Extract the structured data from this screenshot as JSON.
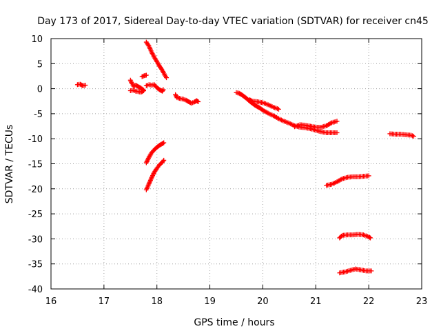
{
  "chart_data": {
    "type": "scatter",
    "title": "Day 173 of 2017, Sidereal Day-to-day VTEC variation (SDTVAR) for receiver cn45",
    "xlabel": "GPS time / hours",
    "ylabel": "SDTVAR / TECUs",
    "xlim": [
      16,
      23
    ],
    "ylim": [
      -40,
      10
    ],
    "xticks": [
      "16",
      "17",
      "18",
      "19",
      "20",
      "21",
      "22",
      "23"
    ],
    "yticks": [
      "10",
      "5",
      "0",
      "-5",
      "-10",
      "-15",
      "-20",
      "-25",
      "-30",
      "-35",
      "-40"
    ],
    "grid": true,
    "marker": "plus",
    "color": "#ff0000",
    "segments": [
      [
        [
          16.5,
          0.8
        ],
        [
          16.55,
          0.9
        ],
        [
          16.6,
          0.6
        ],
        [
          16.65,
          0.7
        ]
      ],
      [
        [
          17.5,
          1.7
        ],
        [
          17.53,
          1.0
        ],
        [
          17.56,
          0.5
        ],
        [
          17.6,
          0.7
        ],
        [
          17.65,
          0.4
        ],
        [
          17.7,
          0.1
        ],
        [
          17.75,
          -0.3
        ]
      ],
      [
        [
          17.5,
          -0.4
        ],
        [
          17.55,
          -0.3
        ],
        [
          17.6,
          -0.5
        ],
        [
          17.65,
          -0.6
        ],
        [
          17.7,
          -0.7
        ],
        [
          17.75,
          -0.4
        ]
      ],
      [
        [
          17.72,
          2.4
        ],
        [
          17.76,
          2.6
        ],
        [
          17.8,
          2.7
        ]
      ],
      [
        [
          17.8,
          0.6
        ],
        [
          17.85,
          0.8
        ],
        [
          17.9,
          0.7
        ],
        [
          17.95,
          0.8
        ],
        [
          18.0,
          0.2
        ],
        [
          18.05,
          -0.2
        ],
        [
          18.1,
          -0.5
        ],
        [
          18.12,
          -0.2
        ]
      ],
      [
        [
          17.8,
          9.3
        ],
        [
          17.85,
          8.5
        ],
        [
          17.9,
          7.3
        ],
        [
          17.95,
          6.3
        ],
        [
          18.0,
          5.4
        ],
        [
          18.05,
          4.5
        ],
        [
          18.1,
          3.7
        ],
        [
          18.15,
          2.7
        ],
        [
          18.18,
          2.2
        ]
      ],
      [
        [
          18.35,
          -1.2
        ],
        [
          18.38,
          -1.8
        ],
        [
          18.45,
          -2.0
        ],
        [
          18.5,
          -2.1
        ],
        [
          18.55,
          -2.3
        ],
        [
          18.6,
          -2.6
        ],
        [
          18.65,
          -2.9
        ],
        [
          18.7,
          -2.7
        ],
        [
          18.75,
          -2.4
        ],
        [
          18.78,
          -2.6
        ]
      ],
      [
        [
          17.8,
          -14.8
        ],
        [
          17.85,
          -13.7
        ],
        [
          17.9,
          -12.8
        ],
        [
          17.95,
          -12.2
        ],
        [
          18.0,
          -11.7
        ],
        [
          18.05,
          -11.3
        ],
        [
          18.1,
          -11.0
        ],
        [
          18.13,
          -10.8
        ]
      ],
      [
        [
          17.8,
          -20.2
        ],
        [
          17.85,
          -19.0
        ],
        [
          17.9,
          -17.8
        ],
        [
          17.95,
          -16.7
        ],
        [
          18.0,
          -15.9
        ],
        [
          18.05,
          -15.2
        ],
        [
          18.1,
          -14.7
        ],
        [
          18.13,
          -14.3
        ]
      ],
      [
        [
          19.5,
          -0.8
        ],
        [
          19.55,
          -0.9
        ],
        [
          19.6,
          -1.2
        ],
        [
          19.65,
          -1.6
        ],
        [
          19.7,
          -2.0
        ],
        [
          19.75,
          -2.5
        ],
        [
          19.8,
          -2.9
        ],
        [
          19.85,
          -3.3
        ],
        [
          19.9,
          -3.6
        ],
        [
          19.95,
          -3.9
        ],
        [
          20.0,
          -4.3
        ],
        [
          20.1,
          -4.9
        ],
        [
          20.2,
          -5.4
        ],
        [
          20.3,
          -6.0
        ],
        [
          20.4,
          -6.5
        ],
        [
          20.5,
          -6.9
        ],
        [
          20.6,
          -7.4
        ],
        [
          20.7,
          -7.7
        ],
        [
          20.8,
          -7.8
        ],
        [
          20.9,
          -8.0
        ],
        [
          21.0,
          -8.3
        ],
        [
          21.1,
          -8.6
        ],
        [
          21.2,
          -8.8
        ],
        [
          21.3,
          -8.8
        ],
        [
          21.4,
          -8.8
        ]
      ],
      [
        [
          19.75,
          -2.2
        ],
        [
          19.8,
          -2.5
        ],
        [
          19.9,
          -2.6
        ],
        [
          20.0,
          -2.8
        ],
        [
          20.1,
          -3.2
        ],
        [
          20.2,
          -3.7
        ],
        [
          20.3,
          -4.1
        ]
      ],
      [
        [
          20.6,
          -7.6
        ],
        [
          20.7,
          -7.2
        ],
        [
          20.8,
          -7.3
        ],
        [
          20.9,
          -7.5
        ],
        [
          21.0,
          -7.7
        ],
        [
          21.1,
          -7.7
        ],
        [
          21.2,
          -7.4
        ],
        [
          21.3,
          -6.8
        ],
        [
          21.4,
          -6.5
        ]
      ],
      [
        [
          21.2,
          -19.3
        ],
        [
          21.3,
          -19.1
        ],
        [
          21.4,
          -18.6
        ],
        [
          21.5,
          -18.0
        ],
        [
          21.6,
          -17.7
        ],
        [
          21.7,
          -17.6
        ],
        [
          21.8,
          -17.6
        ],
        [
          21.9,
          -17.5
        ],
        [
          22.0,
          -17.4
        ]
      ],
      [
        [
          21.45,
          -29.8
        ],
        [
          21.5,
          -29.3
        ],
        [
          21.6,
          -29.2
        ],
        [
          21.7,
          -29.2
        ],
        [
          21.8,
          -29.1
        ],
        [
          21.9,
          -29.2
        ],
        [
          22.0,
          -29.6
        ],
        [
          22.03,
          -29.8
        ]
      ],
      [
        [
          21.45,
          -36.8
        ],
        [
          21.55,
          -36.6
        ],
        [
          21.65,
          -36.3
        ],
        [
          21.75,
          -36.0
        ],
        [
          21.85,
          -36.2
        ],
        [
          21.95,
          -36.4
        ],
        [
          22.05,
          -36.4
        ]
      ],
      [
        [
          22.4,
          -9.0
        ],
        [
          22.5,
          -9.1
        ],
        [
          22.6,
          -9.1
        ],
        [
          22.7,
          -9.2
        ],
        [
          22.8,
          -9.3
        ],
        [
          22.85,
          -9.5
        ]
      ]
    ]
  }
}
